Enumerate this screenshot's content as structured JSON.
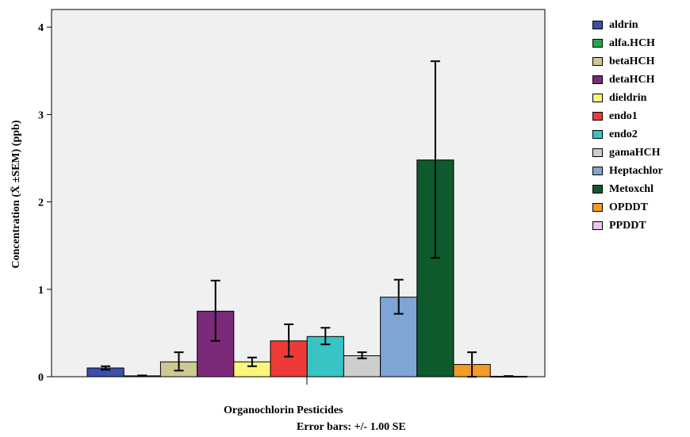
{
  "chart_data": {
    "type": "bar",
    "xlabel": "Organochlorin Pesticides",
    "ylabel": "Concentration (X̄ ±SEM) (ppb)",
    "footnote": "Error bars: +/- 1.00 SE",
    "ylim": [
      0,
      4.2
    ],
    "yticks": [
      0,
      1,
      2,
      3,
      4
    ],
    "legend_position": "right",
    "series": [
      {
        "name": "aldrin",
        "value": 0.1,
        "error_low": 0.08,
        "error_high": 0.12,
        "color": "#3b50a8"
      },
      {
        "name": "alfa.HCH",
        "value": 0.01,
        "error_low": 0.005,
        "error_high": 0.015,
        "color": "#22a84a"
      },
      {
        "name": "betaHCH",
        "value": 0.17,
        "error_low": 0.07,
        "error_high": 0.28,
        "color": "#cfc895"
      },
      {
        "name": "detaHCH",
        "value": 0.75,
        "error_low": 0.41,
        "error_high": 1.1,
        "color": "#7b2a7a"
      },
      {
        "name": "dieldrin",
        "value": 0.17,
        "error_low": 0.12,
        "error_high": 0.22,
        "color": "#fbf67b"
      },
      {
        "name": "endo1",
        "value": 0.41,
        "error_low": 0.23,
        "error_high": 0.6,
        "color": "#ee3a36"
      },
      {
        "name": "endo2",
        "value": 0.46,
        "error_low": 0.37,
        "error_high": 0.56,
        "color": "#38c4c4"
      },
      {
        "name": "gamaHCH",
        "value": 0.24,
        "error_low": 0.21,
        "error_high": 0.28,
        "color": "#cdcdcd"
      },
      {
        "name": "Heptachlor",
        "value": 0.91,
        "error_low": 0.72,
        "error_high": 1.11,
        "color": "#7ea5d4"
      },
      {
        "name": "Metoxchl",
        "value": 2.48,
        "error_low": 1.36,
        "error_high": 3.61,
        "color": "#0e5a2c"
      },
      {
        "name": "OPDDT",
        "value": 0.14,
        "error_low": 0.0,
        "error_high": 0.28,
        "color": "#f59b25"
      },
      {
        "name": "PPDDT",
        "value": 0.005,
        "error_low": 0.003,
        "error_high": 0.008,
        "color": "#e8c8ec"
      }
    ]
  }
}
